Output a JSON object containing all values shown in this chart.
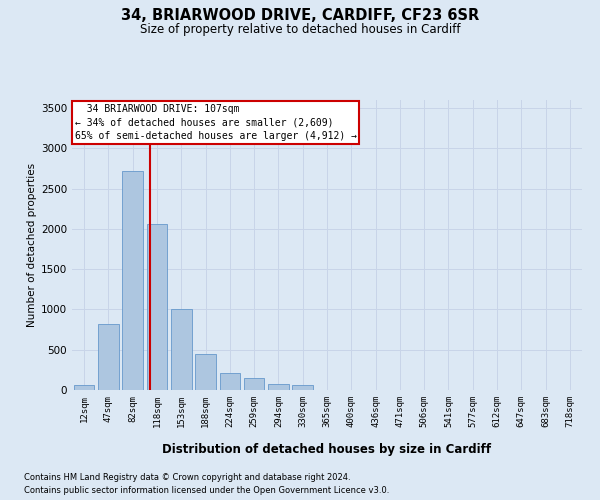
{
  "title1": "34, BRIARWOOD DRIVE, CARDIFF, CF23 6SR",
  "title2": "Size of property relative to detached houses in Cardiff",
  "xlabel": "Distribution of detached houses by size in Cardiff",
  "ylabel": "Number of detached properties",
  "footnote1": "Contains HM Land Registry data © Crown copyright and database right 2024.",
  "footnote2": "Contains public sector information licensed under the Open Government Licence v3.0.",
  "categories": [
    "12sqm",
    "47sqm",
    "82sqm",
    "118sqm",
    "153sqm",
    "188sqm",
    "224sqm",
    "259sqm",
    "294sqm",
    "330sqm",
    "365sqm",
    "400sqm",
    "436sqm",
    "471sqm",
    "506sqm",
    "541sqm",
    "577sqm",
    "612sqm",
    "647sqm",
    "683sqm",
    "718sqm"
  ],
  "bar_values": [
    60,
    820,
    2720,
    2060,
    1000,
    450,
    210,
    145,
    70,
    60,
    0,
    0,
    0,
    0,
    0,
    0,
    0,
    0,
    0,
    0,
    0
  ],
  "bar_color": "#adc6e0",
  "bar_edge_color": "#6699cc",
  "ylim": [
    0,
    3600
  ],
  "yticks": [
    0,
    500,
    1000,
    1500,
    2000,
    2500,
    3000,
    3500
  ],
  "vline_color": "#cc0000",
  "annotation_text": "  34 BRIARWOOD DRIVE: 107sqm\n← 34% of detached houses are smaller (2,609)\n65% of semi-detached houses are larger (4,912) →",
  "annotation_box_facecolor": "#ffffff",
  "annotation_box_edgecolor": "#cc0000",
  "grid_color": "#c8d4e8",
  "background_color": "#dce8f4",
  "fig_background": "#dce8f4"
}
